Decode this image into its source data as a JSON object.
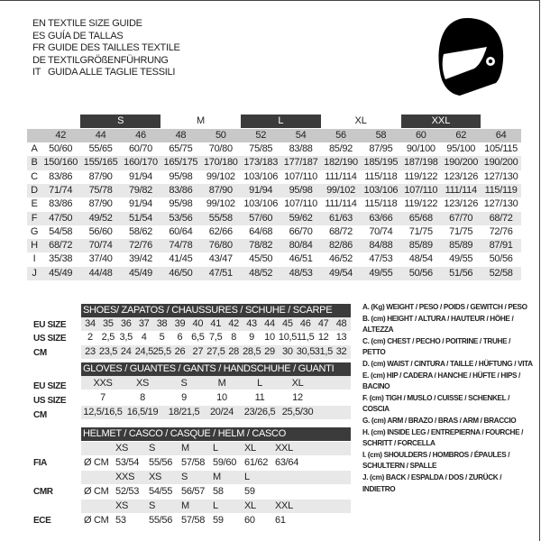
{
  "titles": [
    {
      "code": "EN",
      "text": "TEXTILE SIZE GUIDE"
    },
    {
      "code": "ES",
      "text": "GUÍA DE TALLAS"
    },
    {
      "code": "FR",
      "text": "GUIDE DES TAILLES TEXTILE"
    },
    {
      "code": "DE",
      "text": "TEXTILGRÖßENFÜHRUNG"
    },
    {
      "code": "IT",
      "text": "GUIDA ALLE TAGLIE TESSILI"
    }
  ],
  "icon": "helmet-icon",
  "colors": {
    "dark": "#3b3b3b",
    "header_grey": "#c8c8c8",
    "stripe": "#e8e8e8"
  },
  "textile": {
    "groups": [
      {
        "label": "S",
        "span": [
          1,
          2
        ],
        "dark": true
      },
      {
        "label": "M",
        "span": [
          3,
          4
        ],
        "dark": false
      },
      {
        "label": "L",
        "span": [
          5,
          6
        ],
        "dark": true
      },
      {
        "label": "XL",
        "span": [
          7,
          8
        ],
        "dark": false
      },
      {
        "label": "XXL",
        "span": [
          9,
          10
        ],
        "dark": true
      }
    ],
    "sizes": [
      "42",
      "44",
      "46",
      "48",
      "50",
      "52",
      "54",
      "56",
      "58",
      "60",
      "62",
      "64"
    ],
    "rows": [
      {
        "key": "A",
        "values": [
          "50/60",
          "55/65",
          "60/70",
          "65/75",
          "70/80",
          "75/85",
          "83/88",
          "85/92",
          "87/95",
          "90/100",
          "95/100",
          "105/115"
        ]
      },
      {
        "key": "B",
        "values": [
          "150/160",
          "155/165",
          "160/170",
          "165/175",
          "170/180",
          "173/183",
          "177/187",
          "182/190",
          "185/195",
          "187/198",
          "190/200",
          "190/200"
        ]
      },
      {
        "key": "C",
        "values": [
          "83/86",
          "87/90",
          "91/94",
          "95/98",
          "99/102",
          "103/106",
          "107/110",
          "111/114",
          "115/118",
          "119/122",
          "123/126",
          "127/130"
        ]
      },
      {
        "key": "D",
        "values": [
          "71/74",
          "75/78",
          "79/82",
          "83/86",
          "87/90",
          "91/94",
          "95/98",
          "99/102",
          "103/106",
          "107/110",
          "111/114",
          "115/119"
        ]
      },
      {
        "key": "E",
        "values": [
          "83/86",
          "87/90",
          "91/94",
          "95/98",
          "99/102",
          "103/106",
          "107/110",
          "111/114",
          "115/118",
          "119/122",
          "123/126",
          "127/130"
        ]
      },
      {
        "key": "F",
        "values": [
          "47/50",
          "49/52",
          "51/54",
          "53/56",
          "55/58",
          "57/60",
          "59/62",
          "61/63",
          "63/66",
          "65/68",
          "67/70",
          "68/72"
        ]
      },
      {
        "key": "G",
        "values": [
          "54/58",
          "56/60",
          "58/62",
          "60/64",
          "62/66",
          "64/68",
          "66/70",
          "68/72",
          "70/74",
          "71/75",
          "71/75",
          "72/76"
        ]
      },
      {
        "key": "H",
        "values": [
          "68/72",
          "70/74",
          "72/76",
          "74/78",
          "76/80",
          "78/82",
          "80/84",
          "82/86",
          "84/88",
          "85/89",
          "85/89",
          "87/91"
        ]
      },
      {
        "key": "I",
        "values": [
          "35/38",
          "37/40",
          "39/42",
          "41/45",
          "43/47",
          "45/50",
          "46/51",
          "46/52",
          "47/53",
          "48/54",
          "49/55",
          "50/56"
        ]
      },
      {
        "key": "J",
        "values": [
          "45/49",
          "44/48",
          "45/49",
          "46/50",
          "47/51",
          "48/52",
          "48/53",
          "49/54",
          "49/55",
          "50/56",
          "51/56",
          "52/58"
        ]
      }
    ]
  },
  "shoes": {
    "title": "SHOES/ ZAPATOS / CHAUSSURES / SCHUHE / SCARPE",
    "rows": [
      {
        "label": "EU SIZE",
        "values": [
          "34",
          "35",
          "36",
          "37",
          "38",
          "39",
          "40",
          "41",
          "42",
          "43",
          "44",
          "45",
          "46",
          "47",
          "48"
        ]
      },
      {
        "label": "US SIZE",
        "values": [
          "2",
          "2,5",
          "3,5",
          "4",
          "5",
          "6",
          "6,5",
          "7,5",
          "8",
          "9",
          "10",
          "10,5",
          "11,5",
          "12",
          "13"
        ]
      },
      {
        "label": "CM",
        "values": [
          "23",
          "23,5",
          "24",
          "24,5",
          "25,5",
          "26",
          "27",
          "27,5",
          "28",
          "28,5",
          "29",
          "30",
          "30,5",
          "31,5",
          "32"
        ]
      }
    ]
  },
  "gloves": {
    "title": "GLOVES / GUANTES / GANTS / HANDSCHUHE / GUANTI",
    "rows": [
      {
        "label": "EU SIZE",
        "values": [
          "XXS",
          "XS",
          "S",
          "M",
          "L",
          "XL"
        ]
      },
      {
        "label": "US SIZE",
        "values": [
          "7",
          "8",
          "9",
          "10",
          "11",
          "12"
        ]
      },
      {
        "label": "CM",
        "values": [
          "12,5/16,5",
          "16,5/19",
          "18/21,5",
          "20/24",
          "23/26,5",
          "25,5/30"
        ]
      }
    ]
  },
  "helmet": {
    "title": "HELMET / CASCO / CASQUE / HELM / CASCO",
    "standards": [
      {
        "label": "FIA",
        "unit": "Ø CM",
        "sizes": [
          "XS",
          "S",
          "M",
          "L",
          "XL",
          "XXL"
        ],
        "values": [
          "53/54",
          "55/56",
          "57/58",
          "59/60",
          "61/62",
          "63/64"
        ]
      },
      {
        "label": "CMR",
        "unit": "Ø CM",
        "sizes": [
          "XXS",
          "XS",
          "S",
          "M",
          "L"
        ],
        "values": [
          "52/53",
          "54/55",
          "56/57",
          "58",
          "59"
        ]
      },
      {
        "label": "ECE",
        "unit": "Ø CM",
        "sizes": [
          "XS",
          "S",
          "M",
          "L",
          "XL",
          "XXL"
        ],
        "values": [
          "53",
          "55/56",
          "57/58",
          "59",
          "60",
          "61"
        ]
      }
    ]
  },
  "legend": [
    "A. (Kg) WEIGHT / PESO / POIDS / GEWITCH / PESO",
    "B. (cm) HEIGHT / ALTURA / HAUTEUR / HÖHE / ALTEZZA",
    "C. (cm) CHEST / PECHO / POITRINE / TRUHE / PETTO",
    "D. (cm) WAIST / CINTURA / TAILLE / HÜFTUNG / VITA",
    "E. (cm) HIP / CADERA / HANCHE / HÜFTE / HIPS /  BACINO",
    "F. (cm) TIGH / MUSLO / CUISSE / SCHENKEL / COSCIA",
    "G. (cm) ARM  / BRAZO / BRAS / ARM / BRACCIO",
    "H. (cm) INSIDE LEG / ENTREPIERNA / FOURCHE /",
    "SCHRITT / FORCELLA",
    "I. (cm) SHOULDERS / HOMBROS / ÉPAULES /",
    "SCHULTERN / SPALLE",
    "J. (cm) BACK / ESPALDA / DOS / ZURÜCK / INDIETRO"
  ]
}
